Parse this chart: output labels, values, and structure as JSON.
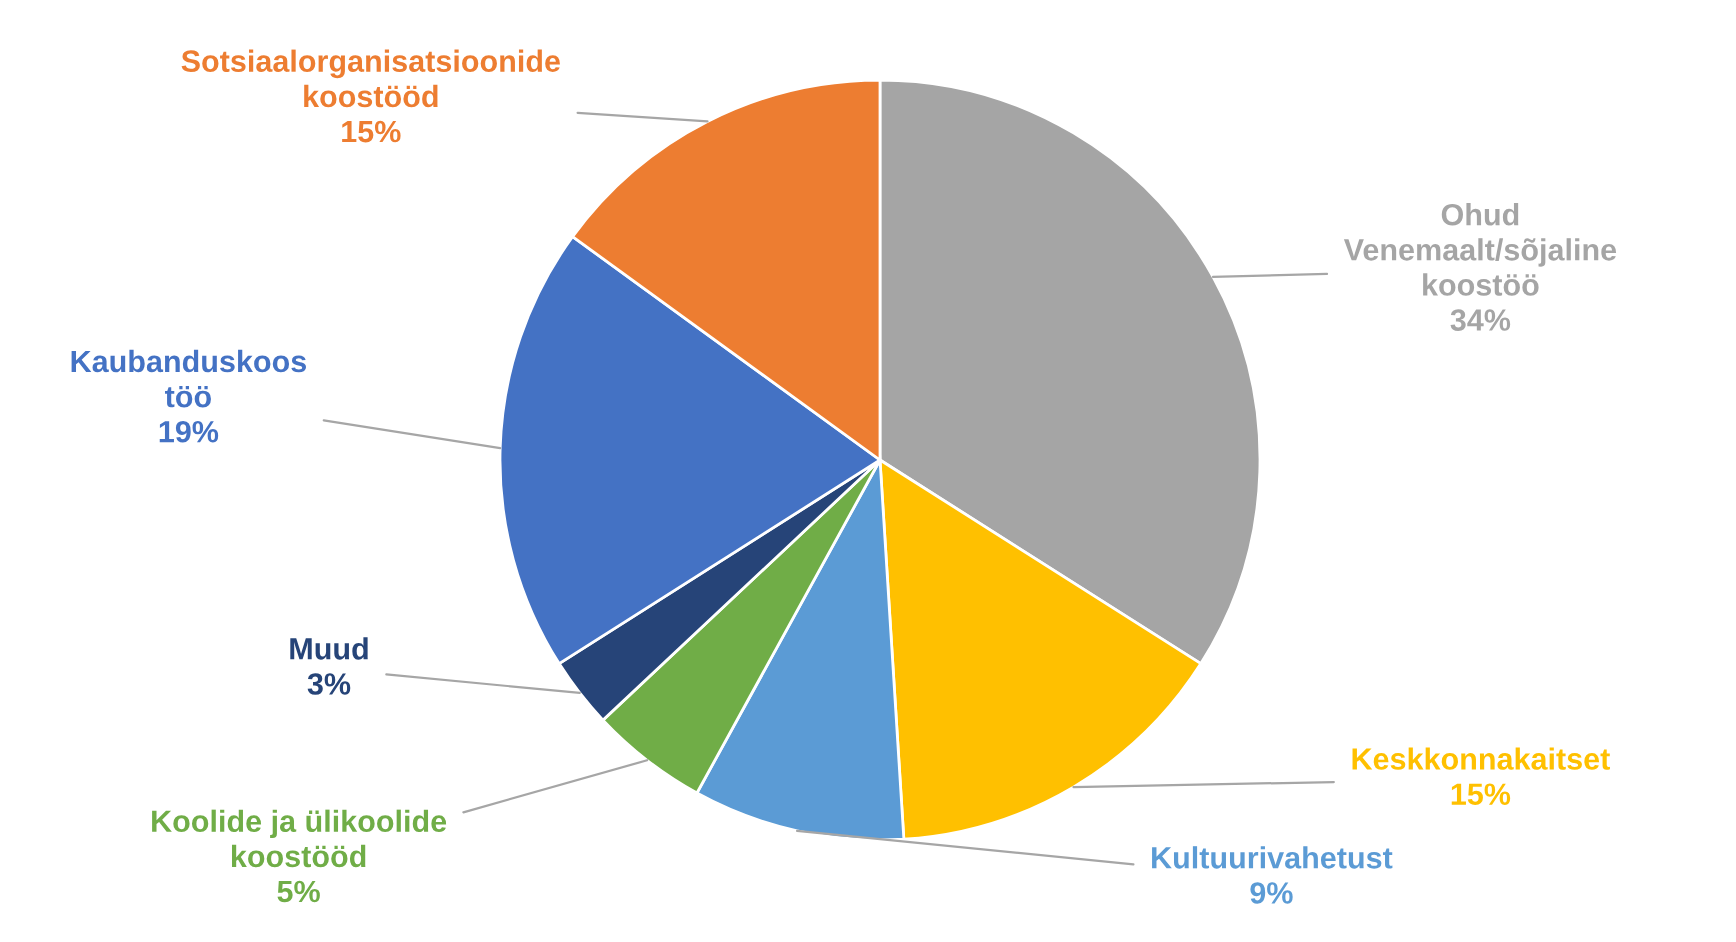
{
  "chart_data": {
    "type": "pie",
    "categories": [
      "Ohud\nVenemaalt/sõjaline\nkoostöö",
      "Keskkonnakaitset",
      "Kultuurivahetust",
      "Koolide ja ülikoolide\nkoostööd",
      "Muud",
      "Kaubanduskoos\ntöö",
      "Sotsiaalorganisatsioonide\nkoostööd"
    ],
    "values": [
      34,
      15,
      9,
      5,
      3,
      19,
      15
    ],
    "value_labels": [
      "34%",
      "15%",
      "9%",
      "5%",
      "3%",
      "19%",
      "15%"
    ],
    "colors": [
      "#a5a5a5",
      "#ffc000",
      "#5b9bd5",
      "#70ad47",
      "#264478",
      "#4472c4",
      "#ed7d31"
    ],
    "legend": false
  }
}
